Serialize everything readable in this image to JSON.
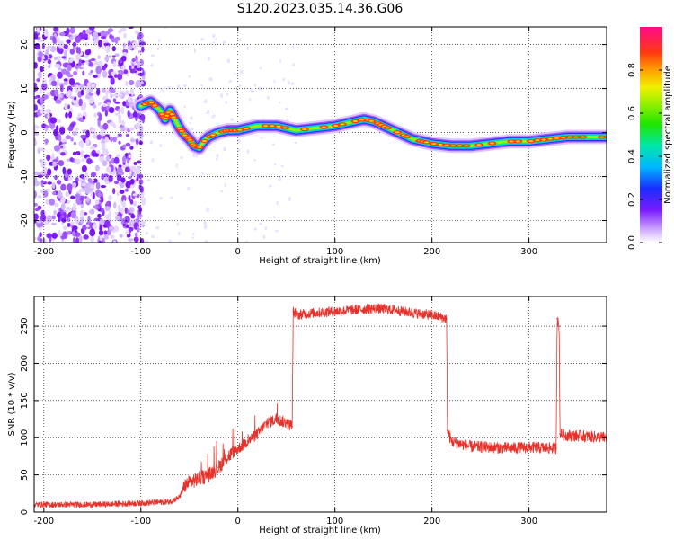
{
  "title": "S120.2023.035.14.36.G06",
  "chart_data": [
    {
      "type": "heatmap",
      "xlabel": "Height of straight line (km)",
      "ylabel": "Frequency (Hz)",
      "xlim": [
        -210,
        380
      ],
      "ylim": [
        -25,
        24
      ],
      "xticks": [
        -200,
        -100,
        0,
        100,
        200,
        300
      ],
      "yticks": [
        -20,
        -10,
        0,
        10,
        20
      ],
      "noise_region_x": [
        -210,
        -97
      ],
      "ridge": {
        "x": [
          -100,
          -90,
          -80,
          -75,
          -70,
          -65,
          -60,
          -55,
          -50,
          -45,
          -40,
          -35,
          -30,
          -20,
          -10,
          0,
          20,
          40,
          60,
          80,
          100,
          110,
          120,
          130,
          140,
          150,
          160,
          170,
          180,
          190,
          200,
          220,
          240,
          260,
          280,
          300,
          320,
          340,
          360,
          380
        ],
        "y": [
          6,
          7,
          5,
          3,
          5,
          3,
          1,
          -0.5,
          -1.5,
          -3,
          -3.5,
          -2,
          -1,
          0,
          0.5,
          0.5,
          1.5,
          1.5,
          0.5,
          1,
          1.5,
          2,
          2.5,
          3,
          2.5,
          1.5,
          0.5,
          -0.5,
          -1.5,
          -2,
          -2.5,
          -3,
          -3,
          -2.5,
          -2,
          -2,
          -1.5,
          -1,
          -1,
          -1
        ]
      },
      "colorbar": {
        "label": "Normalized spectral amplitude",
        "ticks": [
          0.0,
          0.2,
          0.4,
          0.6,
          0.8
        ],
        "range": [
          0,
          1
        ]
      },
      "grid": true
    },
    {
      "type": "line",
      "xlabel": "Height of straight line (km)",
      "ylabel": "SNR (10 * v/v)",
      "xlim": [
        -210,
        380
      ],
      "ylim": [
        0,
        290
      ],
      "xticks": [
        -200,
        -100,
        0,
        100,
        200,
        300
      ],
      "yticks": [
        0,
        50,
        100,
        150,
        200,
        250
      ],
      "color": "#e8312a",
      "grid": true,
      "series": [
        {
          "x": [
            -210,
            -150,
            -100,
            -70,
            -60,
            -55,
            -50,
            -40,
            -30,
            -20,
            -10,
            0,
            10,
            20,
            30,
            40,
            50,
            56,
            57,
            60,
            80,
            100,
            120,
            140,
            160,
            180,
            200,
            215,
            216,
            220,
            240,
            260,
            280,
            300,
            320,
            328,
            329,
            331,
            332,
            340,
            360,
            380
          ],
          "y": [
            10,
            10,
            12,
            14,
            20,
            35,
            40,
            45,
            50,
            60,
            75,
            85,
            95,
            105,
            120,
            125,
            120,
            115,
            270,
            265,
            268,
            270,
            272,
            274,
            272,
            268,
            265,
            260,
            110,
            95,
            88,
            87,
            86,
            87,
            86,
            86,
            260,
            250,
            105,
            103,
            102,
            100
          ]
        }
      ]
    }
  ]
}
